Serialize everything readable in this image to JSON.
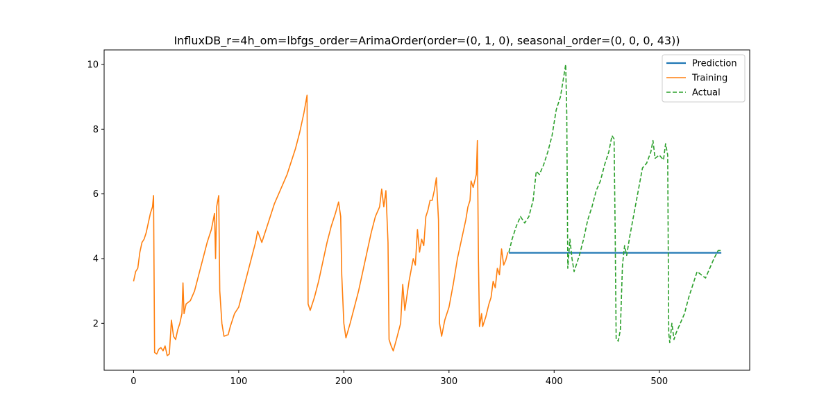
{
  "chart_data": {
    "type": "line",
    "title": "InfluxDB_r=4h_om=lbfgs_order=ArimaOrder(order=(0, 1, 0), seasonal_order=(0, 0, 0, 43))",
    "xlabel": "",
    "ylabel": "",
    "xlim": [
      -28,
      586
    ],
    "ylim": [
      0.55,
      10.45
    ],
    "x_ticks": [
      0,
      100,
      200,
      300,
      400,
      500
    ],
    "y_ticks": [
      2,
      4,
      6,
      8,
      10
    ],
    "grid": false,
    "legend_position": "top-right",
    "series": [
      {
        "name": "Prediction",
        "color": "#1f77b4",
        "style": "solid",
        "points": [
          [
            357,
            4.18
          ],
          [
            559,
            4.18
          ]
        ]
      },
      {
        "name": "Training",
        "color": "#ff7f0e",
        "style": "solid",
        "points": [
          [
            0,
            3.3
          ],
          [
            2,
            3.6
          ],
          [
            4,
            3.7
          ],
          [
            6,
            4.2
          ],
          [
            8,
            4.5
          ],
          [
            10,
            4.6
          ],
          [
            12,
            4.8
          ],
          [
            14,
            5.1
          ],
          [
            16,
            5.4
          ],
          [
            18,
            5.6
          ],
          [
            19,
            5.95
          ],
          [
            20,
            1.1
          ],
          [
            22,
            1.05
          ],
          [
            24,
            1.2
          ],
          [
            26,
            1.25
          ],
          [
            28,
            1.15
          ],
          [
            30,
            1.3
          ],
          [
            32,
            1.0
          ],
          [
            34,
            1.05
          ],
          [
            36,
            2.1
          ],
          [
            38,
            1.6
          ],
          [
            40,
            1.5
          ],
          [
            42,
            1.8
          ],
          [
            44,
            2.0
          ],
          [
            46,
            2.3
          ],
          [
            47,
            3.25
          ],
          [
            48,
            2.3
          ],
          [
            50,
            2.6
          ],
          [
            54,
            2.7
          ],
          [
            58,
            3.0
          ],
          [
            62,
            3.5
          ],
          [
            66,
            4.0
          ],
          [
            70,
            4.5
          ],
          [
            74,
            4.9
          ],
          [
            77,
            5.4
          ],
          [
            78,
            4.0
          ],
          [
            79,
            5.6
          ],
          [
            81,
            5.95
          ],
          [
            82,
            3.0
          ],
          [
            84,
            2.0
          ],
          [
            86,
            1.6
          ],
          [
            90,
            1.65
          ],
          [
            92,
            1.9
          ],
          [
            96,
            2.3
          ],
          [
            100,
            2.5
          ],
          [
            104,
            3.0
          ],
          [
            108,
            3.5
          ],
          [
            112,
            4.0
          ],
          [
            116,
            4.5
          ],
          [
            118,
            4.85
          ],
          [
            122,
            4.5
          ],
          [
            126,
            4.9
          ],
          [
            130,
            5.3
          ],
          [
            134,
            5.7
          ],
          [
            138,
            6.0
          ],
          [
            142,
            6.3
          ],
          [
            146,
            6.6
          ],
          [
            150,
            7.0
          ],
          [
            154,
            7.4
          ],
          [
            158,
            7.9
          ],
          [
            162,
            8.5
          ],
          [
            165,
            9.05
          ],
          [
            166,
            2.6
          ],
          [
            168,
            2.4
          ],
          [
            172,
            2.8
          ],
          [
            176,
            3.3
          ],
          [
            180,
            3.9
          ],
          [
            184,
            4.5
          ],
          [
            188,
            5.0
          ],
          [
            192,
            5.4
          ],
          [
            195,
            5.75
          ],
          [
            197,
            5.3
          ],
          [
            198,
            3.5
          ],
          [
            200,
            2.0
          ],
          [
            202,
            1.55
          ],
          [
            206,
            2.0
          ],
          [
            210,
            2.5
          ],
          [
            214,
            3.0
          ],
          [
            218,
            3.6
          ],
          [
            222,
            4.2
          ],
          [
            226,
            4.8
          ],
          [
            230,
            5.3
          ],
          [
            234,
            5.6
          ],
          [
            236,
            6.15
          ],
          [
            238,
            5.6
          ],
          [
            240,
            6.1
          ],
          [
            242,
            4.5
          ],
          [
            243,
            1.5
          ],
          [
            245,
            1.3
          ],
          [
            247,
            1.15
          ],
          [
            250,
            1.5
          ],
          [
            254,
            2.0
          ],
          [
            256,
            3.2
          ],
          [
            258,
            2.4
          ],
          [
            262,
            3.3
          ],
          [
            266,
            4.0
          ],
          [
            268,
            3.8
          ],
          [
            270,
            4.9
          ],
          [
            272,
            4.2
          ],
          [
            274,
            4.6
          ],
          [
            276,
            4.4
          ],
          [
            278,
            5.3
          ],
          [
            280,
            5.5
          ],
          [
            282,
            5.8
          ],
          [
            284,
            5.8
          ],
          [
            286,
            6.1
          ],
          [
            288,
            6.5
          ],
          [
            290,
            5.2
          ],
          [
            291,
            2.0
          ],
          [
            293,
            1.6
          ],
          [
            296,
            2.1
          ],
          [
            300,
            2.5
          ],
          [
            304,
            3.2
          ],
          [
            308,
            4.0
          ],
          [
            312,
            4.6
          ],
          [
            316,
            5.2
          ],
          [
            318,
            5.6
          ],
          [
            320,
            5.8
          ],
          [
            321,
            6.4
          ],
          [
            323,
            6.2
          ],
          [
            326,
            6.6
          ],
          [
            327,
            7.65
          ],
          [
            328,
            4.0
          ],
          [
            329,
            1.9
          ],
          [
            331,
            2.3
          ],
          [
            332,
            1.9
          ],
          [
            335,
            2.2
          ],
          [
            338,
            2.6
          ],
          [
            340,
            2.8
          ],
          [
            342,
            3.3
          ],
          [
            344,
            3.1
          ],
          [
            346,
            3.7
          ],
          [
            348,
            3.5
          ],
          [
            350,
            4.3
          ],
          [
            352,
            3.8
          ],
          [
            354,
            3.95
          ],
          [
            356,
            4.2
          ]
        ]
      },
      {
        "name": "Actual",
        "color": "#2ca02c",
        "style": "dashed",
        "points": [
          [
            357,
            4.2
          ],
          [
            360,
            4.6
          ],
          [
            364,
            5.0
          ],
          [
            368,
            5.3
          ],
          [
            372,
            5.1
          ],
          [
            376,
            5.3
          ],
          [
            380,
            5.8
          ],
          [
            383,
            6.7
          ],
          [
            386,
            6.6
          ],
          [
            390,
            6.9
          ],
          [
            394,
            7.3
          ],
          [
            398,
            7.8
          ],
          [
            402,
            8.6
          ],
          [
            406,
            9.0
          ],
          [
            409,
            9.6
          ],
          [
            411,
            10.0
          ],
          [
            412,
            8.5
          ],
          [
            413,
            3.7
          ],
          [
            415,
            4.6
          ],
          [
            417,
            4.0
          ],
          [
            419,
            3.6
          ],
          [
            421,
            3.8
          ],
          [
            424,
            4.1
          ],
          [
            428,
            4.6
          ],
          [
            432,
            5.2
          ],
          [
            436,
            5.6
          ],
          [
            440,
            6.1
          ],
          [
            444,
            6.4
          ],
          [
            448,
            6.9
          ],
          [
            452,
            7.3
          ],
          [
            455,
            7.8
          ],
          [
            457,
            7.7
          ],
          [
            458,
            5.0
          ],
          [
            459,
            1.5
          ],
          [
            461,
            1.45
          ],
          [
            463,
            1.8
          ],
          [
            465,
            3.8
          ],
          [
            467,
            4.4
          ],
          [
            469,
            4.1
          ],
          [
            472,
            4.7
          ],
          [
            476,
            5.4
          ],
          [
            480,
            6.1
          ],
          [
            484,
            6.8
          ],
          [
            488,
            6.95
          ],
          [
            492,
            7.3
          ],
          [
            494,
            7.65
          ],
          [
            496,
            7.1
          ],
          [
            500,
            7.2
          ],
          [
            504,
            7.05
          ],
          [
            506,
            7.55
          ],
          [
            508,
            7.2
          ],
          [
            509,
            1.7
          ],
          [
            510,
            1.4
          ],
          [
            512,
            2.0
          ],
          [
            514,
            1.5
          ],
          [
            516,
            1.7
          ],
          [
            520,
            2.0
          ],
          [
            524,
            2.3
          ],
          [
            528,
            2.8
          ],
          [
            532,
            3.2
          ],
          [
            536,
            3.6
          ],
          [
            540,
            3.5
          ],
          [
            544,
            3.4
          ],
          [
            548,
            3.7
          ],
          [
            552,
            4.0
          ],
          [
            556,
            4.25
          ],
          [
            559,
            4.25
          ]
        ]
      }
    ]
  }
}
